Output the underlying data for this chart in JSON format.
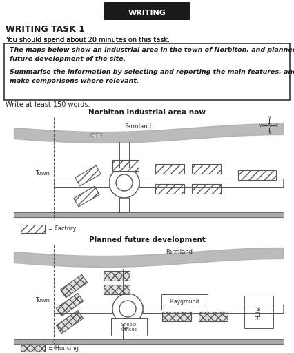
{
  "title_box_text": "WRITING",
  "task_title": "WRITING TASK 1",
  "instruction1": "You should spend about 20 minutes on this task.",
  "box_text1": "The maps below show an industrial area in the town of Norbiton, and planned\nfuture development of the site.",
  "box_text2": "Summarise the information by selecting and reporting the main features, and\nmake comparisons where relevant.",
  "write_text": "Write at least 150 words.",
  "map1_title": "Norbiton industrial area now",
  "map2_title": "Planned future development",
  "legend1_text": "= Factory",
  "legend2_text": "= Housing",
  "bg_color": "#ffffff",
  "map_bg": "#ffffff",
  "road_color": "#aaaaaa",
  "hatch_color": "#888888",
  "border_color": "#333333"
}
